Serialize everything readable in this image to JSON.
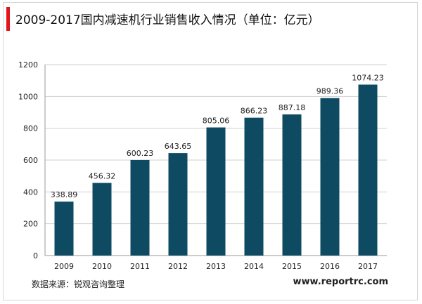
{
  "title": "2009-2017国内减速机行业销售收入情况（单位：亿元）",
  "footer": {
    "source": "数据来源：锐观咨询整理",
    "site": "www.reportrc.com"
  },
  "colors": {
    "bar": "#0e4b63",
    "accent": "#e1161c",
    "grid": "#cfcfcf"
  },
  "chart_data": {
    "type": "bar",
    "title": "2009-2017国内减速机行业销售收入情况（单位：亿元）",
    "categories": [
      "2009",
      "2010",
      "2011",
      "2012",
      "2013",
      "2014",
      "2015",
      "2016",
      "2017"
    ],
    "values": [
      338.89,
      456.32,
      600.23,
      643.65,
      805.06,
      866.23,
      887.18,
      989.36,
      1074.23
    ],
    "value_labels": [
      "338.89",
      "456.32",
      "600.23",
      "643.65",
      "805.06",
      "866.23",
      "887.18",
      "989.36",
      "1074.23"
    ],
    "ylim": [
      0,
      1200
    ],
    "yticks": [
      0,
      200,
      400,
      600,
      800,
      1000,
      1200
    ],
    "grid": true,
    "legend": "none"
  }
}
